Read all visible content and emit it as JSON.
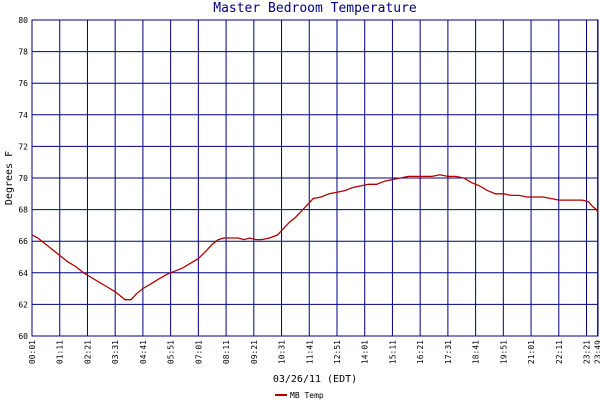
{
  "chart_data": {
    "type": "line",
    "title": "Master Bedroom Temperature",
    "xlabel": "03/26/11 (EDT)",
    "ylabel": "Degrees F",
    "ylim": [
      60,
      80
    ],
    "yticks": [
      "60",
      "62",
      "64",
      "66",
      "68",
      "70",
      "72",
      "74",
      "76",
      "78",
      "80"
    ],
    "xticks": [
      "00:01",
      "01:11",
      "02:21",
      "03:31",
      "04:41",
      "05:51",
      "07:01",
      "08:11",
      "09:21",
      "10:31",
      "11:41",
      "12:51",
      "14:01",
      "15:11",
      "16:21",
      "17:31",
      "18:41",
      "19:51",
      "21:01",
      "22:11",
      "23:21",
      "23:49"
    ],
    "grid": true,
    "legend_position": "bottom-left",
    "colors": {
      "background": "#ffffff",
      "grid": "#000080",
      "series": "#b00000",
      "title": "#000080"
    },
    "series": [
      {
        "name": "MB Temp",
        "points": [
          [
            0,
            66.4
          ],
          [
            15,
            66.2
          ],
          [
            25,
            66.0
          ],
          [
            40,
            65.7
          ],
          [
            55,
            65.4
          ],
          [
            70,
            65.1
          ],
          [
            90,
            64.7
          ],
          [
            110,
            64.4
          ],
          [
            130,
            64.0
          ],
          [
            150,
            63.7
          ],
          [
            170,
            63.4
          ],
          [
            190,
            63.1
          ],
          [
            210,
            62.8
          ],
          [
            225,
            62.5
          ],
          [
            235,
            62.3
          ],
          [
            250,
            62.3
          ],
          [
            265,
            62.7
          ],
          [
            280,
            63.0
          ],
          [
            300,
            63.3
          ],
          [
            320,
            63.6
          ],
          [
            340,
            63.9
          ],
          [
            360,
            64.1
          ],
          [
            380,
            64.3
          ],
          [
            400,
            64.6
          ],
          [
            420,
            64.9
          ],
          [
            440,
            65.4
          ],
          [
            455,
            65.8
          ],
          [
            470,
            66.1
          ],
          [
            485,
            66.2
          ],
          [
            500,
            66.2
          ],
          [
            520,
            66.2
          ],
          [
            535,
            66.1
          ],
          [
            550,
            66.2
          ],
          [
            565,
            66.1
          ],
          [
            580,
            66.1
          ],
          [
            600,
            66.2
          ],
          [
            620,
            66.4
          ],
          [
            635,
            66.8
          ],
          [
            650,
            67.2
          ],
          [
            665,
            67.5
          ],
          [
            680,
            67.9
          ],
          [
            695,
            68.3
          ],
          [
            710,
            68.7
          ],
          [
            730,
            68.8
          ],
          [
            750,
            69.0
          ],
          [
            770,
            69.1
          ],
          [
            790,
            69.2
          ],
          [
            810,
            69.4
          ],
          [
            830,
            69.5
          ],
          [
            850,
            69.6
          ],
          [
            870,
            69.6
          ],
          [
            890,
            69.8
          ],
          [
            910,
            69.9
          ],
          [
            930,
            70.0
          ],
          [
            950,
            70.1
          ],
          [
            970,
            70.1
          ],
          [
            990,
            70.1
          ],
          [
            1010,
            70.1
          ],
          [
            1030,
            70.2
          ],
          [
            1050,
            70.1
          ],
          [
            1070,
            70.1
          ],
          [
            1090,
            70.0
          ],
          [
            1110,
            69.7
          ],
          [
            1130,
            69.5
          ],
          [
            1150,
            69.2
          ],
          [
            1170,
            69.0
          ],
          [
            1190,
            69.0
          ],
          [
            1210,
            68.9
          ],
          [
            1230,
            68.9
          ],
          [
            1250,
            68.8
          ],
          [
            1270,
            68.8
          ],
          [
            1290,
            68.8
          ],
          [
            1310,
            68.7
          ],
          [
            1330,
            68.6
          ],
          [
            1350,
            68.6
          ],
          [
            1370,
            68.6
          ],
          [
            1390,
            68.6
          ],
          [
            1405,
            68.5
          ],
          [
            1415,
            68.2
          ],
          [
            1425,
            68.0
          ],
          [
            1429,
            67.8
          ]
        ]
      }
    ]
  }
}
